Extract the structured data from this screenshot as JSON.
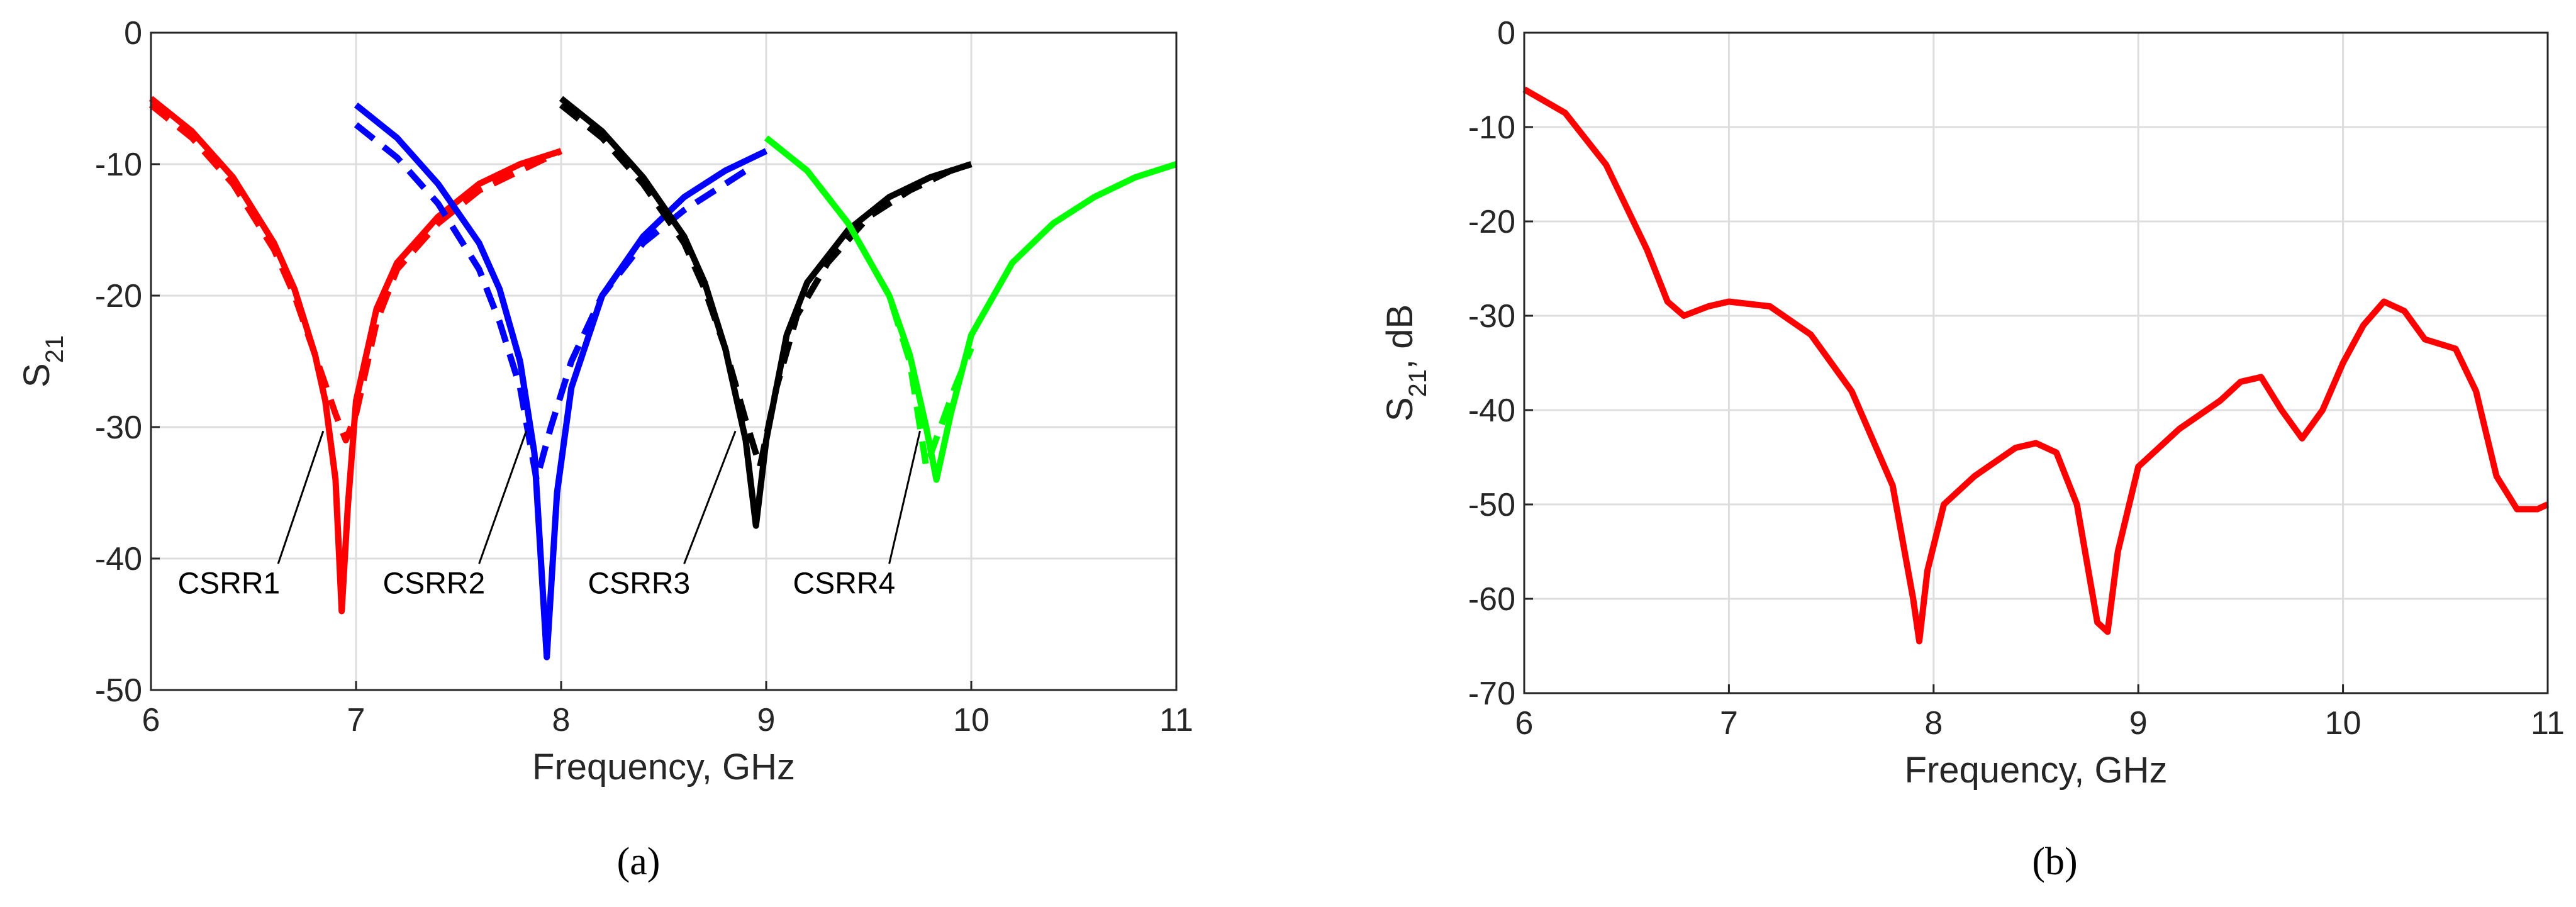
{
  "chart_data": [
    {
      "type": "line",
      "xlabel": "Frequency, GHz",
      "ylabel": [
        "S",
        "21"
      ],
      "panel_label": "(a)",
      "xlim": [
        6,
        11
      ],
      "ylim": [
        -50,
        0
      ],
      "xticks": [
        6,
        7,
        8,
        9,
        10,
        11
      ],
      "yticks": [
        -50,
        -40,
        -30,
        -20,
        -10,
        0
      ],
      "grid": true,
      "annotations": [
        "CSRR1",
        "CSRR2",
        "CSRR3",
        "CSRR4"
      ],
      "series": [
        {
          "color": "#ff0000",
          "dash": false,
          "x": [
            6,
            6.2,
            6.4,
            6.6,
            6.7,
            6.8,
            6.85,
            6.9,
            6.93,
            6.96,
            7.0,
            7.1,
            7.2,
            7.4,
            7.6,
            7.8,
            8.0
          ],
          "values": [
            -5,
            -7.5,
            -11,
            -16,
            -19.5,
            -24.5,
            -28,
            -34,
            -44,
            -36,
            -28,
            -21,
            -17.5,
            -14,
            -11.5,
            -10,
            -9
          ]
        },
        {
          "color": "#ff0000",
          "dash": true,
          "x": [
            6,
            6.2,
            6.4,
            6.6,
            6.7,
            6.8,
            6.9,
            6.95,
            7.0,
            7.1,
            7.2,
            7.4,
            7.6,
            7.8,
            8.0
          ],
          "values": [
            -5.5,
            -8,
            -11.5,
            -16.5,
            -20,
            -24.5,
            -29,
            -31,
            -29,
            -22,
            -18,
            -14.5,
            -12,
            -10.5,
            -9
          ]
        },
        {
          "color": "#0000ff",
          "dash": false,
          "x": [
            7,
            7.2,
            7.4,
            7.6,
            7.7,
            7.8,
            7.87,
            7.93,
            7.98,
            8.05,
            8.2,
            8.4,
            8.6,
            8.8,
            9.0
          ],
          "values": [
            -5.5,
            -8,
            -11.5,
            -16,
            -19.5,
            -25,
            -32,
            -47.5,
            -35,
            -27,
            -20,
            -15.5,
            -12.5,
            -10.5,
            -9
          ]
        },
        {
          "color": "#0000ff",
          "dash": true,
          "x": [
            7,
            7.2,
            7.4,
            7.6,
            7.7,
            7.8,
            7.88,
            7.95,
            8.05,
            8.2,
            8.4,
            8.6,
            8.8,
            8.9
          ],
          "values": [
            -7,
            -9.5,
            -13,
            -18,
            -22,
            -27,
            -34,
            -30,
            -25,
            -20,
            -16,
            -13.5,
            -11.5,
            -10.5
          ]
        },
        {
          "color": "#000000",
          "dash": false,
          "x": [
            8,
            8.2,
            8.4,
            8.6,
            8.7,
            8.8,
            8.9,
            8.95,
            9.0,
            9.1,
            9.2,
            9.4,
            9.6,
            9.8,
            10
          ],
          "values": [
            -5,
            -7.5,
            -11,
            -15.5,
            -19,
            -24,
            -31,
            -37.5,
            -31,
            -23,
            -19,
            -15,
            -12.5,
            -11,
            -10
          ]
        },
        {
          "color": "#000000",
          "dash": true,
          "x": [
            8,
            8.2,
            8.4,
            8.6,
            8.7,
            8.8,
            8.9,
            8.97,
            9.05,
            9.15,
            9.3,
            9.5,
            9.7,
            9.9,
            10
          ],
          "values": [
            -5.5,
            -8,
            -11.5,
            -16,
            -19.5,
            -24,
            -29.5,
            -33,
            -27,
            -21.5,
            -17.5,
            -14,
            -12,
            -10.5,
            -10
          ]
        },
        {
          "color": "#00ff00",
          "dash": false,
          "x": [
            9,
            9.2,
            9.4,
            9.6,
            9.7,
            9.78,
            9.83,
            9.9,
            10,
            10.2,
            10.4,
            10.6,
            10.8,
            11
          ],
          "values": [
            -8,
            -10.5,
            -14.5,
            -20,
            -24.5,
            -30,
            -34,
            -29,
            -23,
            -17.5,
            -14.5,
            -12.5,
            -11,
            -10
          ]
        },
        {
          "color": "#00ff00",
          "dash": true,
          "x": [
            9,
            9.2,
            9.4,
            9.6,
            9.7,
            9.78,
            9.85,
            9.92,
            10
          ],
          "values": [
            -8,
            -10.5,
            -14.5,
            -20,
            -25,
            -33,
            -30,
            -27,
            -24
          ]
        }
      ]
    },
    {
      "type": "line",
      "xlabel": "Frequency, GHz",
      "ylabel": [
        "S",
        "21",
        ", dB"
      ],
      "panel_label": "(b)",
      "xlim": [
        6,
        11
      ],
      "ylim": [
        -70,
        0
      ],
      "xticks": [
        6,
        7,
        8,
        9,
        10,
        11
      ],
      "yticks": [
        -70,
        -60,
        -50,
        -40,
        -30,
        -20,
        -10,
        0
      ],
      "grid": true,
      "series": [
        {
          "color": "#ff0000",
          "dash": false,
          "x": [
            6,
            6.2,
            6.4,
            6.6,
            6.7,
            6.78,
            6.9,
            7.0,
            7.2,
            7.4,
            7.6,
            7.8,
            7.9,
            7.93,
            7.97,
            8.05,
            8.2,
            8.4,
            8.5,
            8.6,
            8.7,
            8.8,
            8.85,
            8.9,
            9.0,
            9.2,
            9.4,
            9.5,
            9.6,
            9.7,
            9.8,
            9.9,
            10.0,
            10.1,
            10.2,
            10.3,
            10.4,
            10.55,
            10.65,
            10.75,
            10.85,
            10.95,
            11
          ],
          "values": [
            -6,
            -8.5,
            -14,
            -23,
            -28.5,
            -30,
            -29,
            -28.5,
            -29,
            -32,
            -38,
            -48,
            -60,
            -64.5,
            -57,
            -50,
            -47,
            -44,
            -43.5,
            -44.5,
            -50,
            -62.5,
            -63.5,
            -55,
            -46,
            -42,
            -39,
            -37,
            -36.5,
            -40,
            -43,
            -40,
            -35,
            -31,
            -28.5,
            -29.5,
            -32.5,
            -33.5,
            -38,
            -47,
            -50.5,
            -50.5,
            -50
          ]
        }
      ]
    }
  ]
}
